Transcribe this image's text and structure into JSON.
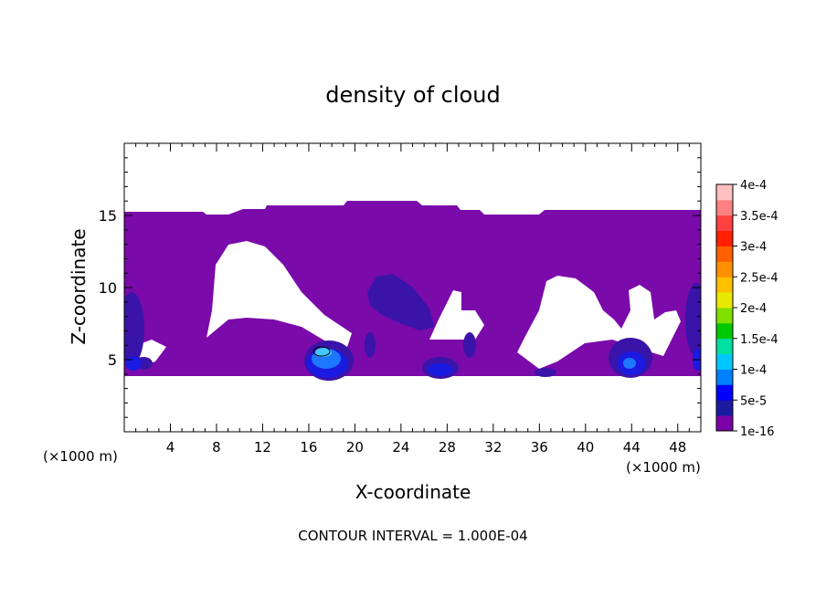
{
  "chart_data": {
    "type": "heatmap",
    "title": "density of cloud",
    "xlabel": "X-coordinate",
    "ylabel": "Z-coordinate",
    "x_unit_left": "(×1000 m)",
    "x_unit_right": "(×1000 m)",
    "xlim": [
      0,
      50
    ],
    "ylim": [
      0,
      20
    ],
    "x_ticks": [
      4,
      8,
      12,
      16,
      20,
      24,
      28,
      32,
      36,
      40,
      44,
      48
    ],
    "y_ticks": [
      5,
      10,
      15
    ],
    "footer": "CONTOUR INTERVAL = 1.000E-04",
    "colorbar": {
      "labels": [
        "1e-16",
        "5e-5",
        "1e-4",
        "1.5e-4",
        "2e-4",
        "2.5e-4",
        "3e-4",
        "3.5e-4",
        "4e-4"
      ],
      "colors": [
        "#7a00a8",
        "#1a1aa0",
        "#0000ff",
        "#0080ff",
        "#00c8ff",
        "#00e0a0",
        "#00c800",
        "#80e000",
        "#e8e800",
        "#ffc000",
        "#ff9000",
        "#ff6000",
        "#ff2000",
        "#ff4040",
        "#ff8080",
        "#ffc0c0"
      ]
    },
    "cloud_top_z": 15.3,
    "cloud_base_z": 3.8,
    "fill_colors": {
      "base": "#7a0aaa",
      "level1": "#3a14a8",
      "level2": "#1a1ae0",
      "level3": "#1e78ff",
      "level4": "#40c8ff"
    }
  }
}
